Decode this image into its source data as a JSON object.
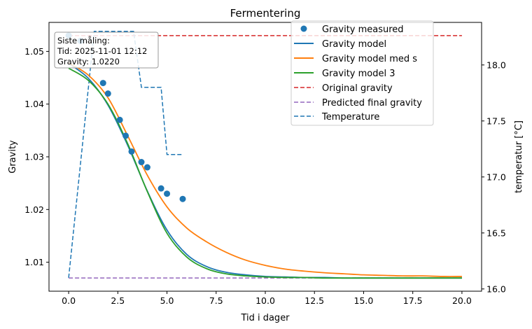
{
  "chart_data": {
    "type": "line",
    "title": "Fermentering",
    "xlabel": "Tid i dager",
    "ylabel": "Gravity",
    "y2label": "temperatur [°C]",
    "xlim": [
      -1.0,
      21.0
    ],
    "ylim": [
      1.0045,
      1.0555
    ],
    "y2lim": [
      15.98,
      18.38
    ],
    "xticks": [
      0.0,
      2.5,
      5.0,
      7.5,
      10.0,
      12.5,
      15.0,
      17.5,
      20.0
    ],
    "xtick_labels": [
      "0.0",
      "2.5",
      "5.0",
      "7.5",
      "10.0",
      "12.5",
      "15.0",
      "17.5",
      "20.0"
    ],
    "yticks": [
      1.01,
      1.02,
      1.03,
      1.04,
      1.05
    ],
    "ytick_labels": [
      "1.01",
      "1.02",
      "1.03",
      "1.04",
      "1.05"
    ],
    "y2ticks": [
      16.0,
      16.5,
      17.0,
      17.5,
      18.0
    ],
    "y2tick_labels": [
      "16.0",
      "16.5",
      "17.0",
      "17.5",
      "18.0"
    ],
    "grid": false,
    "legend_position": "top-right",
    "colors": {
      "measured": "#1f77b4",
      "model": "#1f77b4",
      "model_s": "#ff7f0e",
      "model_3": "#2ca02c",
      "og": "#d62728",
      "fg": "#9467bd",
      "temp": "#1f77b4"
    },
    "annotation": {
      "lines": [
        "Siste måling:",
        "Tid: 2025-11-01 12:12",
        "Gravity: 1.0220"
      ]
    },
    "series": [
      {
        "name": "Gravity measured",
        "kind": "scatter",
        "axis": "left",
        "x": [
          0.0,
          0.6,
          1.75,
          2.0,
          2.6,
          2.9,
          3.2,
          3.7,
          4.0,
          4.7,
          5.0,
          5.8
        ],
        "y": [
          1.053,
          1.052,
          1.044,
          1.042,
          1.037,
          1.034,
          1.031,
          1.029,
          1.028,
          1.024,
          1.023,
          1.022
        ]
      },
      {
        "name": "Gravity model",
        "kind": "line",
        "axis": "left",
        "x": [
          0,
          1,
          2,
          3,
          4,
          5,
          6,
          7,
          8,
          9,
          10,
          11,
          12,
          13,
          14,
          15,
          16,
          17,
          18,
          19,
          20
        ],
        "y": [
          1.0477,
          1.0449,
          1.0398,
          1.0322,
          1.0235,
          1.0161,
          1.0115,
          1.0092,
          1.0081,
          1.0076,
          1.0073,
          1.0072,
          1.0071,
          1.0071,
          1.007,
          1.007,
          1.007,
          1.007,
          1.007,
          1.007,
          1.007
        ]
      },
      {
        "name": "Gravity model med s",
        "kind": "line",
        "axis": "left",
        "x": [
          0,
          1,
          2,
          3,
          4,
          5,
          6,
          7,
          8,
          9,
          10,
          11,
          12,
          13,
          14,
          15,
          16,
          17,
          18,
          19,
          20
        ],
        "y": [
          1.0478,
          1.0455,
          1.0412,
          1.034,
          1.0265,
          1.0205,
          1.0165,
          1.0139,
          1.0119,
          1.0104,
          1.0094,
          1.0087,
          1.0083,
          1.008,
          1.0078,
          1.0076,
          1.0075,
          1.0074,
          1.0074,
          1.0073,
          1.0073
        ]
      },
      {
        "name": "Gravity model 3",
        "kind": "line",
        "axis": "left",
        "x": [
          0,
          1,
          2,
          3,
          4,
          5,
          6,
          7,
          8,
          9,
          10,
          11,
          12,
          13,
          14,
          15,
          16,
          17,
          18,
          19,
          20
        ],
        "y": [
          1.0468,
          1.0445,
          1.04,
          1.0325,
          1.0234,
          1.0155,
          1.011,
          1.0088,
          1.0078,
          1.0074,
          1.0072,
          1.0071,
          1.0071,
          1.007,
          1.007,
          1.007,
          1.007,
          1.007,
          1.007,
          1.007,
          1.007
        ]
      },
      {
        "name": "Original gravity",
        "kind": "dashed",
        "axis": "left",
        "x": [
          0,
          20
        ],
        "y": [
          1.053,
          1.053
        ]
      },
      {
        "name": "Predicted final gravity",
        "kind": "dashed",
        "axis": "left",
        "x": [
          0,
          20
        ],
        "y": [
          1.007,
          1.007
        ]
      },
      {
        "name": "Temperature",
        "kind": "dashed",
        "axis": "right",
        "x": [
          0.0,
          1.3,
          1.35,
          3.3,
          3.7,
          4.7,
          5.0,
          5.8
        ],
        "y": [
          16.1,
          18.3,
          18.3,
          18.3,
          17.8,
          17.8,
          17.2,
          17.2
        ]
      }
    ]
  }
}
